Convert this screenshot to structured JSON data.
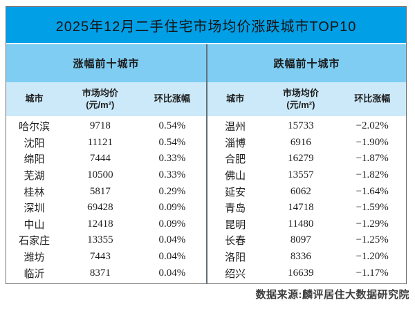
{
  "title": "2025年12月二手住宅市场均价涨跌城市TOP10",
  "footer": "数据来源:麟评居住大数据研究院",
  "colors": {
    "title_bg": "#019fe6",
    "subheader_bg": "#7fcdf3",
    "header_bg": "#cce9f9",
    "frame_border": "#6e6e6e",
    "divider": "#60707a"
  },
  "tables": [
    {
      "subtitle": "涨幅前十城市",
      "header": {
        "city": "城市",
        "price_l1": "市场均价",
        "price_l2": "(元/m²)",
        "change": "环比涨幅"
      },
      "rows": [
        {
          "city": "哈尔滨",
          "price": "9718",
          "change": "0.54%"
        },
        {
          "city": "沈阳",
          "price": "11121",
          "change": "0.54%"
        },
        {
          "city": "绵阳",
          "price": "7444",
          "change": "0.33%"
        },
        {
          "city": "芜湖",
          "price": "10500",
          "change": "0.33%"
        },
        {
          "city": "桂林",
          "price": "5817",
          "change": "0.29%"
        },
        {
          "city": "深圳",
          "price": "69428",
          "change": "0.09%"
        },
        {
          "city": "中山",
          "price": "12418",
          "change": "0.09%"
        },
        {
          "city": "石家庄",
          "price": "13355",
          "change": "0.04%"
        },
        {
          "city": "潍坊",
          "price": "7443",
          "change": "0.04%"
        },
        {
          "city": "临沂",
          "price": "8371",
          "change": "0.04%"
        }
      ]
    },
    {
      "subtitle": "跌幅前十城市",
      "header": {
        "city": "城市",
        "price_l1": "市场均价",
        "price_l2": "(元/m²)",
        "change": "环比涨幅"
      },
      "rows": [
        {
          "city": "温州",
          "price": "15733",
          "change": "−2.02%"
        },
        {
          "city": "淄博",
          "price": "6916",
          "change": "−1.90%"
        },
        {
          "city": "合肥",
          "price": "16279",
          "change": "−1.87%"
        },
        {
          "city": "佛山",
          "price": "13557",
          "change": "−1.82%"
        },
        {
          "city": "延安",
          "price": "6062",
          "change": "−1.64%"
        },
        {
          "city": "青岛",
          "price": "14718",
          "change": "−1.59%"
        },
        {
          "city": "昆明",
          "price": "11480",
          "change": "−1.29%"
        },
        {
          "city": "长春",
          "price": "8097",
          "change": "−1.25%"
        },
        {
          "city": "洛阳",
          "price": "8336",
          "change": "−1.20%"
        },
        {
          "city": "绍兴",
          "price": "16639",
          "change": "−1.17%"
        }
      ]
    }
  ],
  "chart_data": [
    {
      "type": "table",
      "title": "2025年12月二手住宅市场均价涨跌城市TOP10 — 涨幅前十城市",
      "columns": [
        "城市",
        "市场均价(元/m²)",
        "环比涨幅"
      ],
      "rows": [
        [
          "哈尔滨",
          9718,
          "0.54%"
        ],
        [
          "沈阳",
          11121,
          "0.54%"
        ],
        [
          "绵阳",
          7444,
          "0.33%"
        ],
        [
          "芜湖",
          10500,
          "0.33%"
        ],
        [
          "桂林",
          5817,
          "0.29%"
        ],
        [
          "深圳",
          69428,
          "0.09%"
        ],
        [
          "中山",
          12418,
          "0.09%"
        ],
        [
          "石家庄",
          13355,
          "0.04%"
        ],
        [
          "潍坊",
          7443,
          "0.04%"
        ],
        [
          "临沂",
          8371,
          "0.04%"
        ]
      ]
    },
    {
      "type": "table",
      "title": "2025年12月二手住宅市场均价涨跌城市TOP10 — 跌幅前十城市",
      "columns": [
        "城市",
        "市场均价(元/m²)",
        "环比涨幅"
      ],
      "rows": [
        [
          "温州",
          15733,
          "-2.02%"
        ],
        [
          "淄博",
          6916,
          "-1.90%"
        ],
        [
          "合肥",
          16279,
          "-1.87%"
        ],
        [
          "佛山",
          13557,
          "-1.82%"
        ],
        [
          "延安",
          6062,
          "-1.64%"
        ],
        [
          "青岛",
          14718,
          "-1.59%"
        ],
        [
          "昆明",
          11480,
          "-1.29%"
        ],
        [
          "长春",
          8097,
          "-1.25%"
        ],
        [
          "洛阳",
          8336,
          "-1.20%"
        ],
        [
          "绍兴",
          16639,
          "-1.17%"
        ]
      ]
    }
  ]
}
